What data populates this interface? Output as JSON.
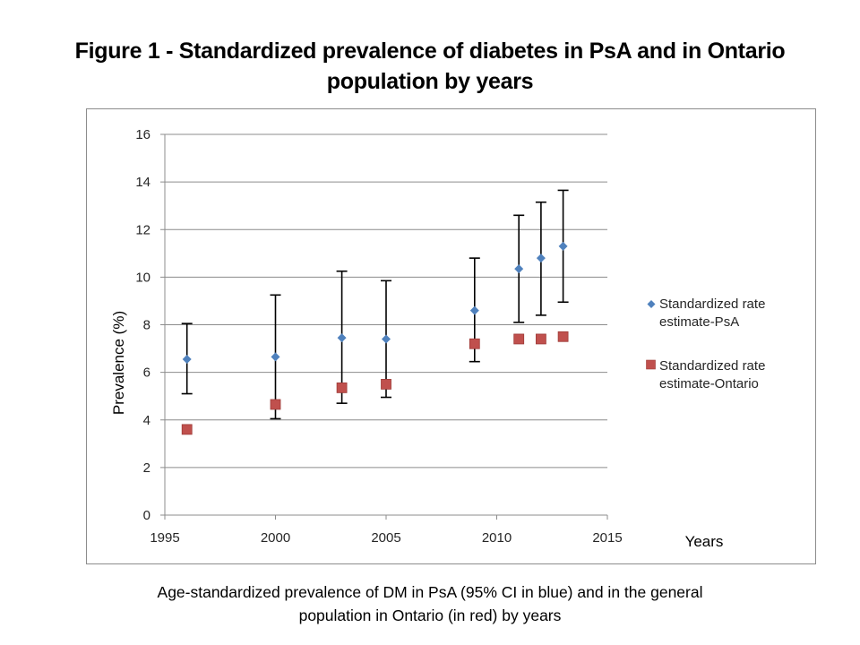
{
  "figure": {
    "title_line1": "Figure 1 - Standardized prevalence of diabetes in PsA and in Ontario",
    "title_line2": "population by years",
    "caption_line1": "Age-standardized prevalence of DM in PsA (95% CI in blue) and in the general",
    "caption_line2": "population in Ontario  (in red) by years"
  },
  "chart_data": {
    "type": "scatter",
    "title": "Figure 1 - Standardized prevalence of diabetes in PsA and in Ontario population by years",
    "xlabel": "Years",
    "ylabel": "Prevalence (%)",
    "xlim": [
      1995,
      2015
    ],
    "ylim": [
      0,
      16
    ],
    "x_ticks": [
      1995,
      2000,
      2005,
      2010,
      2015
    ],
    "y_ticks": [
      0,
      2,
      4,
      6,
      8,
      10,
      12,
      14,
      16
    ],
    "grid": "horizontal",
    "legend_position": "right",
    "colors": {
      "psa": "#4f81bd",
      "ontario": "#c0504d",
      "error_bar": "#000000",
      "grid": "#8c8c8c"
    },
    "x": [
      1996,
      2000,
      2003,
      2005,
      2009,
      2011,
      2012,
      2013
    ],
    "series": [
      {
        "name": "Standardized rate estimate-PsA",
        "legend_line1": "Standardized rate",
        "legend_line2": "estimate-PsA",
        "marker": "diamond",
        "values": [
          6.55,
          6.65,
          7.45,
          7.4,
          8.6,
          10.35,
          10.8,
          11.3
        ],
        "ci_lower": [
          5.1,
          4.05,
          4.7,
          4.95,
          6.45,
          8.1,
          8.4,
          8.95
        ],
        "ci_upper": [
          8.05,
          9.25,
          10.25,
          9.85,
          10.8,
          12.6,
          13.15,
          13.65
        ]
      },
      {
        "name": "Standardized rate estimate-Ontario",
        "legend_line1": "Standardized rate",
        "legend_line2": "estimate-Ontario",
        "marker": "square",
        "values": [
          3.6,
          4.65,
          5.35,
          5.5,
          7.2,
          7.4,
          7.4,
          7.5
        ]
      }
    ]
  }
}
